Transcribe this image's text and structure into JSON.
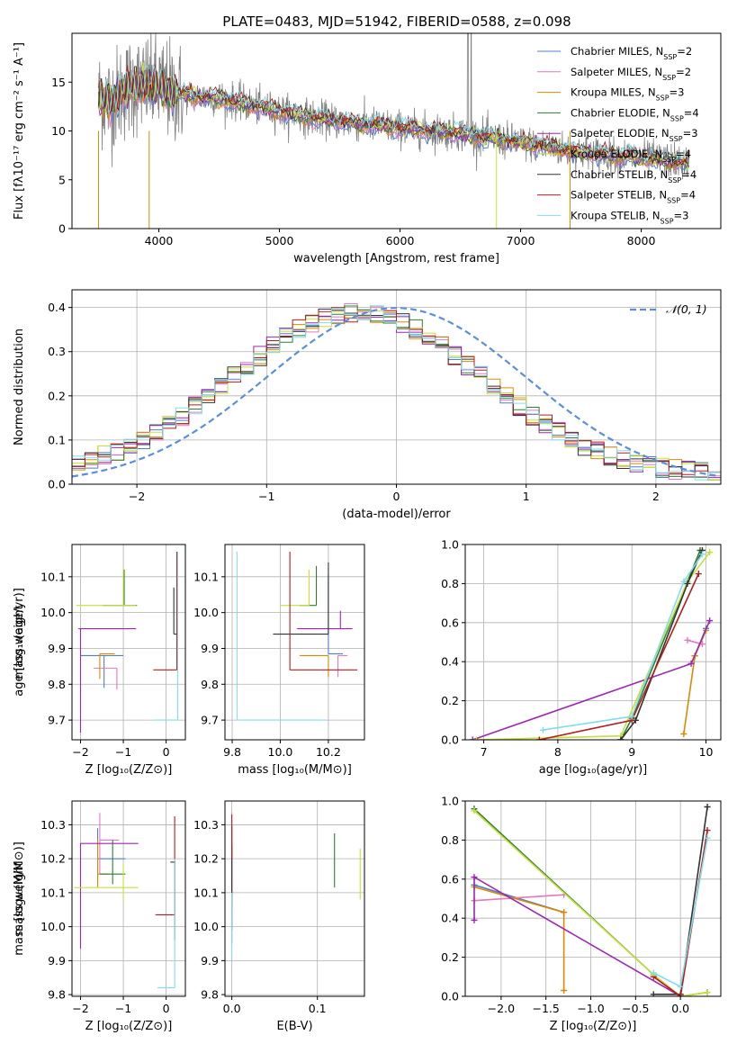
{
  "figure": {
    "title": "PLATE=0483, MJD=51942, FIBERID=0588, z=0.098"
  },
  "chart_data": [
    {
      "id": "spectrum",
      "type": "line",
      "xlabel": "wavelength [Angstrom, rest frame]",
      "ylabel": "Flux [fλ10⁻¹⁷ erg cm⁻² s⁻¹ A⁻¹]",
      "xlim": [
        3280,
        8660
      ],
      "ylim": [
        0,
        20
      ],
      "xticks": [
        4000,
        5000,
        6000,
        7000,
        8000
      ],
      "yticks": [
        0,
        5,
        10,
        15
      ],
      "grid": false,
      "legend_position": "top-right",
      "legend": [
        {
          "label": "Chabrier MILES, N",
          "sub": "SSP",
          "tail": "=2",
          "color": "#4c7fd1"
        },
        {
          "label": "Salpeter MILES, N",
          "sub": "SSP",
          "tail": "=2",
          "color": "#e377c2"
        },
        {
          "label": "Kroupa MILES, N",
          "sub": "SSP",
          "tail": "=3",
          "color": "#d98a00"
        },
        {
          "label": "Chabrier ELODIE, N",
          "sub": "SSP",
          "tail": "=4",
          "color": "#2e7d32"
        },
        {
          "label": "Salpeter ELODIE, N",
          "sub": "SSP",
          "tail": "=3",
          "color": "#9c27b0"
        },
        {
          "label": "Kroupa ELODIE, N",
          "sub": "SSP",
          "tail": "=4",
          "color": "#c6e03a"
        },
        {
          "label": "Chabrier STELIB, N",
          "sub": "SSP",
          "tail": "=4",
          "color": "#333333"
        },
        {
          "label": "Salpeter STELIB, N",
          "sub": "SSP",
          "tail": "=4",
          "color": "#b71c1c"
        },
        {
          "label": "Kroupa STELIB, N",
          "sub": "SSP",
          "tail": "=3",
          "color": "#80deea"
        }
      ],
      "data_color": "#808080",
      "continuum_nodes": {
        "wavelength": [
          3500,
          3600,
          3750,
          3900,
          4000,
          4100,
          4300,
          4500,
          5000,
          5200,
          5500,
          6000,
          6500,
          7000,
          7500,
          8000,
          8400
        ],
        "flux": [
          13.5,
          13.0,
          14.5,
          14.8,
          14.5,
          14.0,
          13.5,
          13.4,
          12.0,
          11.5,
          11.0,
          10.3,
          9.8,
          8.8,
          7.8,
          7.3,
          6.7
        ]
      },
      "model_start_wavelength": 3500,
      "data_end_wavelength": 8400
    },
    {
      "id": "residuals",
      "type": "line",
      "xlabel": "(data-model)/error",
      "ylabel": "Normed distribution",
      "xlim": [
        -2.5,
        2.5
      ],
      "ylim": [
        0,
        0.44
      ],
      "xticks": [
        -2,
        -1,
        0,
        1,
        2
      ],
      "yticks": [
        0.0,
        0.1,
        0.2,
        0.3,
        0.4
      ],
      "grid": true,
      "legend_position": "top-right",
      "gaussian_label": "𝒩(0, 1)",
      "gaussian_color": "#5b8fdb",
      "bin_width": 0.1,
      "hist_colors": [
        "#4c7fd1",
        "#e377c2",
        "#d98a00",
        "#2e7d32",
        "#9c27b0",
        "#c6e03a",
        "#333333",
        "#b71c1c",
        "#80deea"
      ]
    },
    {
      "id": "age-vs-Z",
      "type": "scatter",
      "xlabel": "Z [log₁₀(Z/Z⊙)]",
      "ylabel": "age  [log₁₀(age/yr)]",
      "xlim": [
        -2.2,
        0.45
      ],
      "ylim": [
        9.645,
        10.19
      ],
      "xticks": [
        -2,
        -1,
        0
      ],
      "yticks": [
        9.7,
        9.8,
        9.9,
        10.0,
        10.1
      ],
      "grid": true,
      "errorbars": [
        {
          "x": -1.45,
          "y": 9.88,
          "xerr": [
            0.55,
            0.45
          ],
          "yerr": [
            0.09,
            0.0
          ],
          "color": "#4c7fd1"
        },
        {
          "x": -1.15,
          "y": 9.845,
          "xerr": [
            0.55,
            0.0
          ],
          "yerr": [
            0.06,
            0.0
          ],
          "color": "#e377c2"
        },
        {
          "x": -1.55,
          "y": 9.885,
          "xerr": [
            0.0,
            0.35
          ],
          "yerr": [
            0.07,
            0.0
          ],
          "color": "#d98a00"
        },
        {
          "x": -0.98,
          "y": 10.02,
          "xerr": [
            0.5,
            0.3
          ],
          "yerr": [
            0.0,
            0.1
          ],
          "color": "#2e7d32"
        },
        {
          "x": -2.0,
          "y": 9.955,
          "xerr": [
            0.05,
            1.3
          ],
          "yerr": [
            0.29,
            0.0
          ],
          "color": "#9c27b0"
        },
        {
          "x": -1.0,
          "y": 10.02,
          "xerr": [
            1.1,
            0.3
          ],
          "yerr": [
            0.0,
            0.1
          ],
          "color": "#c6e03a"
        },
        {
          "x": 0.18,
          "y": 9.94,
          "xerr": [
            0.0,
            0.1
          ],
          "yerr": [
            0.0,
            0.13
          ],
          "color": "#333333"
        },
        {
          "x": 0.25,
          "y": 9.84,
          "xerr": [
            0.55,
            0.0
          ],
          "yerr": [
            0.0,
            0.33
          ],
          "color": "#b71c1c"
        },
        {
          "x": 0.27,
          "y": 9.7,
          "xerr": [
            0.55,
            0.0
          ],
          "yerr": [
            0.0,
            0.47
          ],
          "color": "#80deea"
        }
      ]
    },
    {
      "id": "age-vs-mass",
      "type": "scatter",
      "xlabel": "mass [log₁₀(M/M⊙)]",
      "xlim": [
        9.77,
        10.35
      ],
      "ylim": [
        9.645,
        10.19
      ],
      "xticks": [
        9.8,
        10.0,
        10.2
      ],
      "yticks": [
        9.7,
        9.8,
        9.9,
        10.0,
        10.1
      ],
      "grid": true,
      "errorbars": [
        {
          "x": 10.2,
          "y": 9.885,
          "xerr": [
            0.0,
            0.06
          ],
          "yerr": [
            0.0,
            0.22
          ],
          "color": "#4c7fd1"
        },
        {
          "x": 10.24,
          "y": 9.88,
          "xerr": [
            0.0,
            0.04
          ],
          "yerr": [
            0.06,
            0.0
          ],
          "color": "#e377c2"
        },
        {
          "x": 10.2,
          "y": 9.88,
          "xerr": [
            0.12,
            0.0
          ],
          "yerr": [
            0.06,
            0.0
          ],
          "color": "#d98a00"
        },
        {
          "x": 10.15,
          "y": 10.02,
          "xerr": [
            0.07,
            0.0
          ],
          "yerr": [
            0.0,
            0.11
          ],
          "color": "#2e7d32"
        },
        {
          "x": 10.25,
          "y": 9.955,
          "xerr": [
            0.18,
            0.05
          ],
          "yerr": [
            0.0,
            0.05
          ],
          "color": "#9c27b0"
        },
        {
          "x": 10.12,
          "y": 10.02,
          "xerr": [
            0.12,
            0.0
          ],
          "yerr": [
            0.0,
            0.1
          ],
          "color": "#c6e03a"
        },
        {
          "x": 10.2,
          "y": 9.94,
          "xerr": [
            0.23,
            0.0
          ],
          "yerr": [
            0.0,
            0.2
          ],
          "color": "#333333"
        },
        {
          "x": 10.04,
          "y": 9.84,
          "xerr": [
            0.0,
            0.28
          ],
          "yerr": [
            0.0,
            0.33
          ],
          "color": "#b71c1c"
        },
        {
          "x": 9.82,
          "y": 9.7,
          "xerr": [
            0.0,
            0.37
          ],
          "yerr": [
            0.0,
            0.47
          ],
          "color": "#80deea"
        }
      ]
    },
    {
      "id": "weight-vs-age",
      "type": "line",
      "xlabel": "age  [log₁₀(age/yr)]",
      "ylabel": "mass weight",
      "xlim": [
        6.75,
        10.2
      ],
      "ylim": [
        0,
        1.0
      ],
      "xticks": [
        7,
        8,
        9,
        10
      ],
      "yticks": [
        0.0,
        0.2,
        0.4,
        0.6,
        0.8,
        1.0
      ],
      "grid": true,
      "series": [
        {
          "color": "#4c7fd1",
          "x": [
            9.85,
            10.0
          ],
          "y": [
            0.43,
            0.57
          ]
        },
        {
          "color": "#e377c2",
          "x": [
            9.75,
            9.95
          ],
          "y": [
            0.51,
            0.49
          ]
        },
        {
          "color": "#d98a00",
          "x": [
            9.7,
            9.85,
            10.0
          ],
          "y": [
            0.03,
            0.43,
            0.56
          ]
        },
        {
          "color": "#2e7d32",
          "x": [
            8.85,
            9.0,
            9.75,
            9.92
          ],
          "y": [
            0.0,
            0.11,
            0.81,
            0.97
          ]
        },
        {
          "color": "#9c27b0",
          "x": [
            6.85,
            9.8,
            10.05
          ],
          "y": [
            0.0,
            0.39,
            0.61
          ]
        },
        {
          "color": "#c6e03a",
          "x": [
            6.9,
            8.85,
            9.75,
            10.05
          ],
          "y": [
            0.0,
            0.02,
            0.81,
            0.96
          ]
        },
        {
          "color": "#333333",
          "x": [
            8.85,
            9.05,
            9.75,
            9.95
          ],
          "y": [
            0.0,
            0.1,
            0.8,
            0.97
          ]
        },
        {
          "color": "#b71c1c",
          "x": [
            7.75,
            9.0,
            9.9
          ],
          "y": [
            0.0,
            0.1,
            0.85
          ]
        },
        {
          "color": "#80deea",
          "x": [
            7.8,
            9.0,
            9.7,
            9.95
          ],
          "y": [
            0.05,
            0.12,
            0.81,
            0.95
          ]
        }
      ]
    },
    {
      "id": "mass-vs-Z",
      "type": "scatter",
      "xlabel": "Z [log₁₀(Z/Z⊙)]",
      "ylabel": "mass [log₁₀(M/M⊙)]",
      "xlim": [
        -2.2,
        0.45
      ],
      "ylim": [
        9.795,
        10.37
      ],
      "xticks": [
        -2,
        -1,
        0
      ],
      "yticks": [
        9.8,
        9.9,
        10.0,
        10.1,
        10.2,
        10.3
      ],
      "grid": true,
      "errorbars": [
        {
          "x": -1.6,
          "y": 10.2,
          "xerr": [
            0.0,
            0.65
          ],
          "yerr": [
            0.07,
            0.09
          ],
          "color": "#4c7fd1"
        },
        {
          "x": -1.55,
          "y": 10.255,
          "xerr": [
            0.0,
            0.45
          ],
          "yerr": [
            0.1,
            0.08
          ],
          "color": "#e377c2"
        },
        {
          "x": -1.6,
          "y": 10.155,
          "xerr": [
            0.0,
            0.25
          ],
          "yerr": [
            0.04,
            0.1
          ],
          "color": "#d98a00"
        },
        {
          "x": -1.25,
          "y": 10.155,
          "xerr": [
            0.3,
            0.3
          ],
          "yerr": [
            0.03,
            0.1
          ],
          "color": "#2e7d32"
        },
        {
          "x": -2.0,
          "y": 10.245,
          "xerr": [
            0.0,
            1.35
          ],
          "yerr": [
            0.31,
            0.0
          ],
          "color": "#9c27b0"
        },
        {
          "x": -1.0,
          "y": 10.115,
          "xerr": [
            1.15,
            0.35
          ],
          "yerr": [
            0.035,
            0.07
          ],
          "color": "#c6e03a"
        },
        {
          "x": 0.2,
          "y": 10.19,
          "xerr": [
            0.1,
            0.02
          ],
          "yerr": [
            0.23,
            0.0
          ],
          "color": "#333333"
        },
        {
          "x": 0.2,
          "y": 10.035,
          "xerr": [
            0.45,
            0.0
          ],
          "yerr": [
            0.0,
            0.29
          ],
          "color": "#b71c1c"
        },
        {
          "x": 0.2,
          "y": 9.82,
          "xerr": [
            0.4,
            0.0
          ],
          "yerr": [
            0.0,
            0.38
          ],
          "color": "#80deea"
        }
      ]
    },
    {
      "id": "mass-vs-EBV",
      "type": "scatter",
      "xlabel": "E(B-V)",
      "xlim": [
        -0.008,
        0.155
      ],
      "ylim": [
        9.795,
        10.37
      ],
      "xticks": [
        0.0,
        0.1
      ],
      "yticks": [
        9.8,
        9.9,
        10.0,
        10.1,
        10.2,
        10.3
      ],
      "grid": true,
      "errorbars": [
        {
          "x": 0.0,
          "y": 10.2,
          "xerr": [
            0,
            0
          ],
          "yerr": [
            0.25,
            0.1
          ],
          "color": "#4c7fd1"
        },
        {
          "x": 0.0,
          "y": 10.255,
          "xerr": [
            0,
            0
          ],
          "yerr": [
            0.1,
            0.08
          ],
          "color": "#e377c2"
        },
        {
          "x": 0.0,
          "y": 10.155,
          "xerr": [
            0,
            0
          ],
          "yerr": [
            0.1,
            0.1
          ],
          "color": "#d98a00"
        },
        {
          "x": 0.12,
          "y": 10.195,
          "xerr": [
            0,
            0
          ],
          "yerr": [
            0.08,
            0.08
          ],
          "color": "#2e7d32"
        },
        {
          "x": 0.0,
          "y": 10.245,
          "xerr": [
            0,
            0
          ],
          "yerr": [
            0.15,
            0.05
          ],
          "color": "#9c27b0"
        },
        {
          "x": 0.15,
          "y": 10.155,
          "xerr": [
            0,
            0
          ],
          "yerr": [
            0.075,
            0.075
          ],
          "color": "#c6e03a"
        },
        {
          "x": 0.0,
          "y": 10.19,
          "xerr": [
            0,
            0
          ],
          "yerr": [
            0.2,
            0.05
          ],
          "color": "#333333"
        },
        {
          "x": 0.0,
          "y": 10.26,
          "xerr": [
            0,
            0
          ],
          "yerr": [
            0.06,
            0.07
          ],
          "color": "#b71c1c"
        },
        {
          "x": 0.0,
          "y": 10.0,
          "xerr": [
            0,
            0
          ],
          "yerr": [
            0.1,
            0.1
          ],
          "color": "#80deea"
        }
      ]
    },
    {
      "id": "weight-vs-Z",
      "type": "line",
      "xlabel": "Z [log₁₀(Z/Z⊙)]",
      "ylabel": "mass weight",
      "xlim": [
        -2.4,
        0.45
      ],
      "ylim": [
        0,
        1.0
      ],
      "xticks": [
        -2.0,
        -1.5,
        -1.0,
        -0.5,
        0.0
      ],
      "yticks": [
        0.0,
        0.2,
        0.4,
        0.6,
        0.8,
        1.0
      ],
      "grid": true,
      "series": [
        {
          "color": "#4c7fd1",
          "x": [
            -2.3,
            -1.3
          ],
          "y": [
            0.57,
            0.43
          ]
        },
        {
          "color": "#e377c2",
          "x": [
            -2.3,
            -1.3
          ],
          "y": [
            0.49,
            0.52
          ]
        },
        {
          "color": "#d98a00",
          "x": [
            -2.3,
            -1.3,
            -1.3
          ],
          "y": [
            0.56,
            0.43,
            0.03
          ]
        },
        {
          "color": "#2e7d32",
          "x": [
            -2.3,
            -0.3,
            0.0,
            0.3
          ],
          "y": [
            0.96,
            0.11,
            0.0,
            0.02
          ]
        },
        {
          "color": "#9c27b0",
          "x": [
            -2.3,
            -2.3,
            0.0
          ],
          "y": [
            0.39,
            0.61,
            0.0
          ]
        },
        {
          "color": "#c6e03a",
          "x": [
            -2.3,
            -0.3,
            0.0,
            0.3
          ],
          "y": [
            0.95,
            0.11,
            0.0,
            0.02
          ]
        },
        {
          "color": "#333333",
          "x": [
            -0.3,
            0.0,
            0.3
          ],
          "y": [
            0.01,
            0.01,
            0.97
          ]
        },
        {
          "color": "#b71c1c",
          "x": [
            -0.3,
            0.0,
            0.3
          ],
          "y": [
            0.1,
            0.0,
            0.85
          ]
        },
        {
          "color": "#80deea",
          "x": [
            -0.3,
            0.0,
            0.3
          ],
          "y": [
            0.12,
            0.05,
            0.81
          ]
        }
      ]
    }
  ]
}
